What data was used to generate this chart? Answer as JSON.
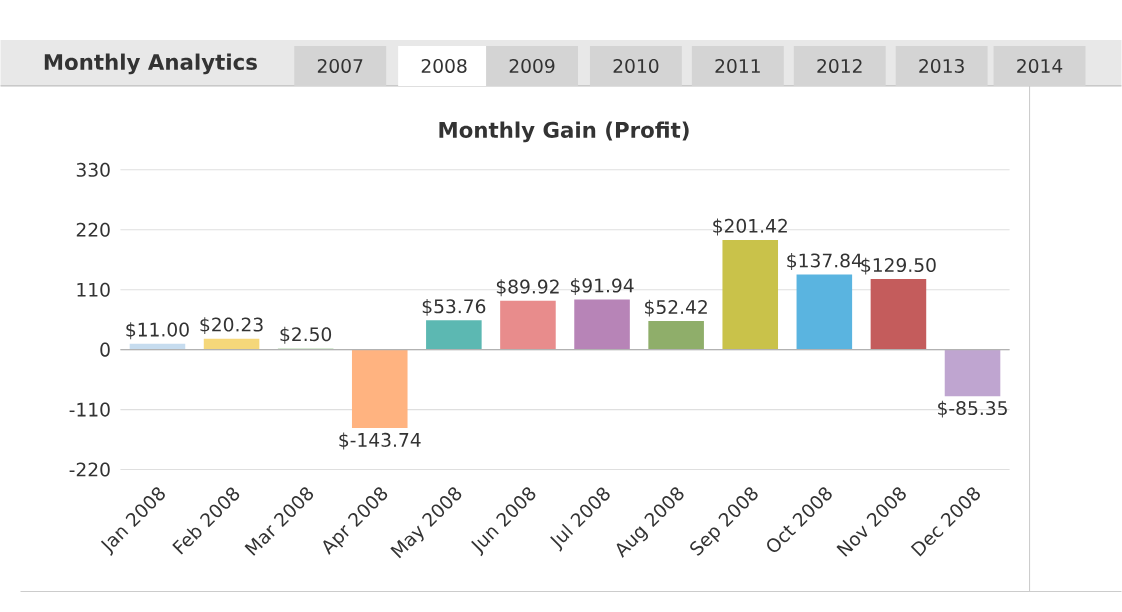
{
  "chart_data": {
    "type": "bar",
    "title": "Monthly Gain (Profit)",
    "annotations": [
      "Monthly Analytics",
      "2007",
      "2008",
      "2009",
      "2010",
      "2011",
      "2012",
      "2013",
      "2014"
    ],
    "categories": [
      "Jan 2008",
      "Feb 2008",
      "Mar 2008",
      "Apr 2008",
      "May 2008",
      "Jun 2008",
      "Jul 2008",
      "Aug 2008",
      "Sep 2008",
      "Oct 2008",
      "Nov 2008",
      "Dec 2008"
    ],
    "values": [
      11.0,
      20.23,
      2.5,
      -143.74,
      53.76,
      89.92,
      91.94,
      52.42,
      201.42,
      137.84,
      129.5,
      -85.35
    ],
    "colors": [
      "#c6dcef",
      "#f5d77a",
      "#c9e3c4",
      "#ffb380",
      "#5cb8b2",
      "#e88c8c",
      "#b784b7",
      "#8fae6a",
      "#c9c24a",
      "#5ab4e0",
      "#c45c5c",
      "#bfa5d0"
    ],
    "value_labels": [
      "$11.00",
      "$20.23",
      "$2.50",
      "$-143.74",
      "$53.76",
      "$89.92",
      "$91.94",
      "$52.42",
      "$201.42",
      "$137.84",
      "$129.50",
      "$-85.35"
    ],
    "ylim": [
      -220,
      330
    ],
    "yticks": [
      -220,
      -110,
      0,
      110,
      220,
      330
    ],
    "grid": "y"
  }
}
